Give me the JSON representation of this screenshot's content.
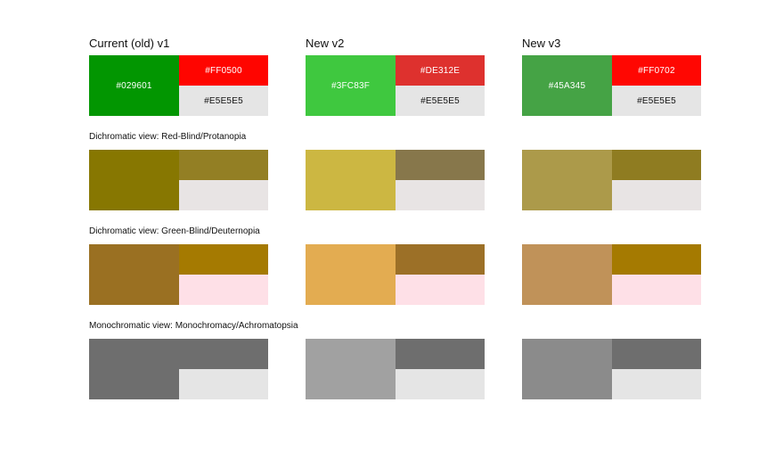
{
  "headers": [
    "Current (old) v1",
    "New v2",
    "New v3"
  ],
  "sections": [
    {
      "label": "",
      "groups": [
        {
          "main": "#029601",
          "top": "#FF0500",
          "bottom": "#E5E5E5",
          "main_label": "#029601",
          "top_label": "#FF0500",
          "bottom_label": "#E5E5E5"
        },
        {
          "main": "#3FC83F",
          "top": "#DE312E",
          "bottom": "#E5E5E5",
          "main_label": "#3FC83F",
          "top_label": "#DE312E",
          "bottom_label": "#E5E5E5"
        },
        {
          "main": "#45A345",
          "top": "#FF0702",
          "bottom": "#E5E5E5",
          "main_label": "#45A345",
          "top_label": "#FF0702",
          "bottom_label": "#E5E5E5"
        }
      ]
    },
    {
      "label": "Dichromatic view: Red-Blind/Protanopia",
      "groups": [
        {
          "main": "#877701",
          "top": "#937F24",
          "bottom": "#E8E4E4"
        },
        {
          "main": "#CCB742",
          "top": "#87774B",
          "bottom": "#E8E4E4"
        },
        {
          "main": "#AC9A4A",
          "top": "#8F7C21",
          "bottom": "#E8E4E4"
        }
      ]
    },
    {
      "label": "Dichromatic view: Green-Blind/Deuternopia",
      "groups": [
        {
          "main": "#9A7022",
          "top": "#A57A01",
          "bottom": "#FEE0E7"
        },
        {
          "main": "#E3AC51",
          "top": "#9C7027",
          "bottom": "#FEE0E7"
        },
        {
          "main": "#C09259",
          "top": "#A57A01",
          "bottom": "#FEE0E7"
        }
      ]
    },
    {
      "label": "Monochromatic view: Monochromacy/Achromatopsia",
      "groups": [
        {
          "main": "#6E6E6E",
          "top": "#6E6E6E",
          "bottom": "#E5E5E5"
        },
        {
          "main": "#A1A1A1",
          "top": "#6E6E6E",
          "bottom": "#E5E5E5"
        },
        {
          "main": "#8B8B8B",
          "top": "#6E6E6E",
          "bottom": "#E5E5E5"
        }
      ]
    }
  ]
}
